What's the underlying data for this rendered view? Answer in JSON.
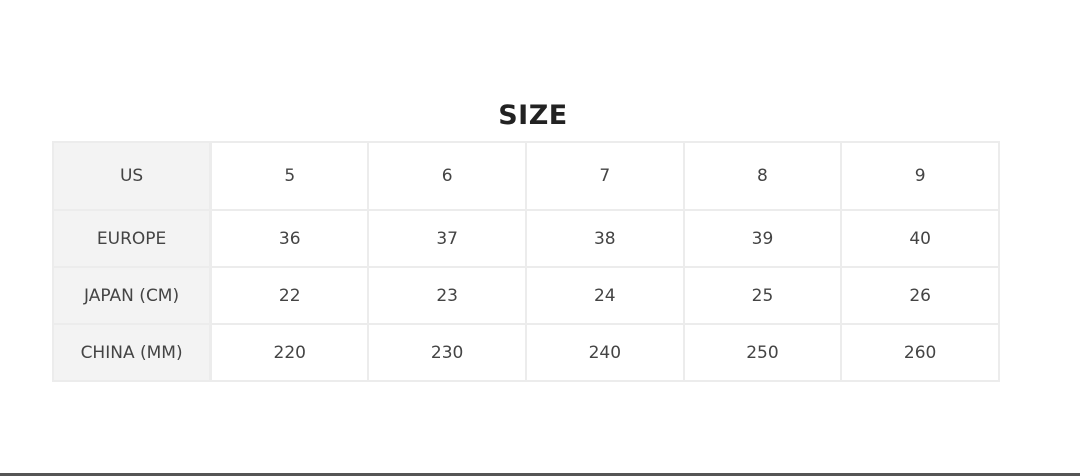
{
  "title": "SIZE",
  "table": {
    "rows": [
      {
        "label": "US",
        "values": [
          "5",
          "6",
          "7",
          "8",
          "9"
        ]
      },
      {
        "label": "EUROPE",
        "values": [
          "36",
          "37",
          "38",
          "39",
          "40"
        ]
      },
      {
        "label": "JAPAN (CM)",
        "values": [
          "22",
          "23",
          "24",
          "25",
          "26"
        ]
      },
      {
        "label": "CHINA (MM)",
        "values": [
          "220",
          "230",
          "240",
          "250",
          "260"
        ]
      }
    ]
  }
}
